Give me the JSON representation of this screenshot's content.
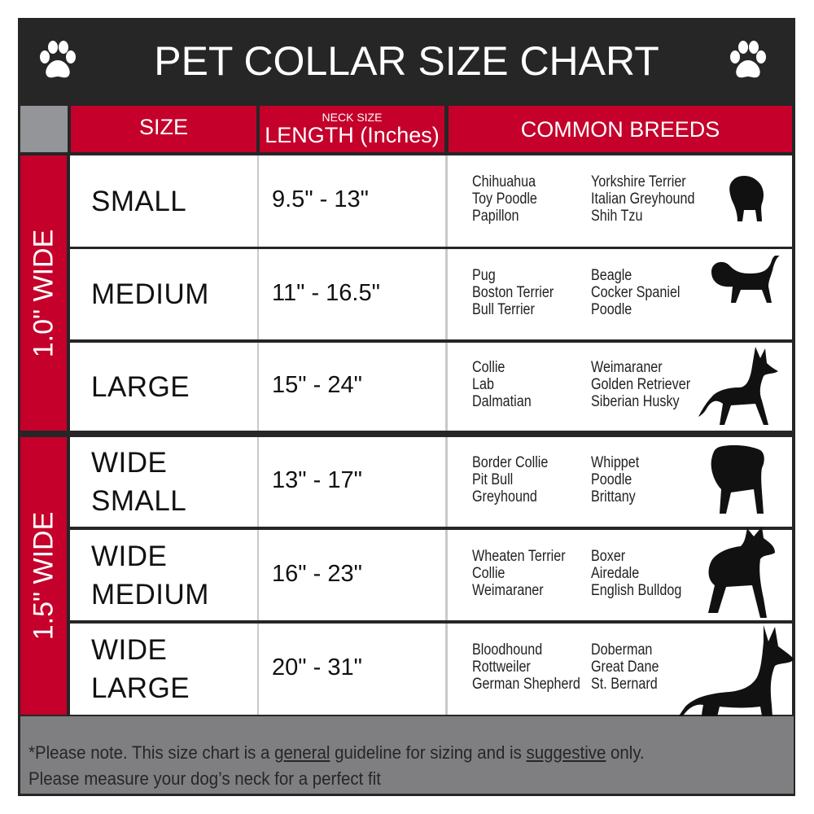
{
  "title": "PET COLLAR SIZE CHART",
  "header": {
    "size": "SIZE",
    "neck_size": "NECK SIZE",
    "length": "LENGTH (Inches)",
    "breeds": "COMMON BREEDS"
  },
  "groups": [
    {
      "label": "1.0\" WIDE"
    },
    {
      "label": "1.5\" WIDE"
    }
  ],
  "rows": [
    {
      "size": "SMALL",
      "length": "9.5\" - 13\"",
      "breeds_a": [
        "Chihuahua",
        "Toy Poodle",
        "Papillon"
      ],
      "breeds_b": [
        "Yorkshire Terrier",
        "Italian Greyhound",
        "Shih Tzu"
      ]
    },
    {
      "size": "MEDIUM",
      "length": "11\" - 16.5\"",
      "breeds_a": [
        "Pug",
        "Boston Terrier",
        "Bull Terrier"
      ],
      "breeds_b": [
        "Beagle",
        "Cocker Spaniel",
        "Poodle"
      ]
    },
    {
      "size": "LARGE",
      "length": "15\" - 24\"",
      "breeds_a": [
        "Collie",
        "Lab",
        "Dalmatian"
      ],
      "breeds_b": [
        "Weimaraner",
        "Golden Retriever",
        "Siberian Husky"
      ]
    },
    {
      "size": "WIDE",
      "size2": "SMALL",
      "length": "13\" - 17\"",
      "breeds_a": [
        "Border Collie",
        "Pit Bull",
        "Greyhound"
      ],
      "breeds_b": [
        "Whippet",
        "Poodle",
        "Brittany"
      ]
    },
    {
      "size": "WIDE",
      "size2": "MEDIUM",
      "length": "16\" - 23\"",
      "breeds_a": [
        "Wheaten Terrier",
        "Collie",
        "Weimaraner"
      ],
      "breeds_b": [
        "Boxer",
        "Airedale",
        "English Bulldog"
      ]
    },
    {
      "size": "WIDE",
      "size2": "LARGE",
      "length": "20\" - 31\"",
      "breeds_a": [
        "Bloodhound",
        "Rottweiler",
        "German Shepherd"
      ],
      "breeds_b": [
        "Doberman",
        "Great Dane",
        "St. Bernard"
      ]
    }
  ],
  "footer": {
    "line1_a": "*Please note. This size chart is a",
    "line1_u1": "general",
    "line1_b": " guideline for sizing and is",
    "line1_u2": "suggestive",
    "line1_c": " only.",
    "line2": "Please measure your dog’s neck for a perfect fit"
  },
  "colors": {
    "red": "#c4002b",
    "dark": "#262626",
    "gray": "#7f7f81"
  },
  "icons": [
    "paw-print-icon",
    "dog-silhouette-icon"
  ]
}
